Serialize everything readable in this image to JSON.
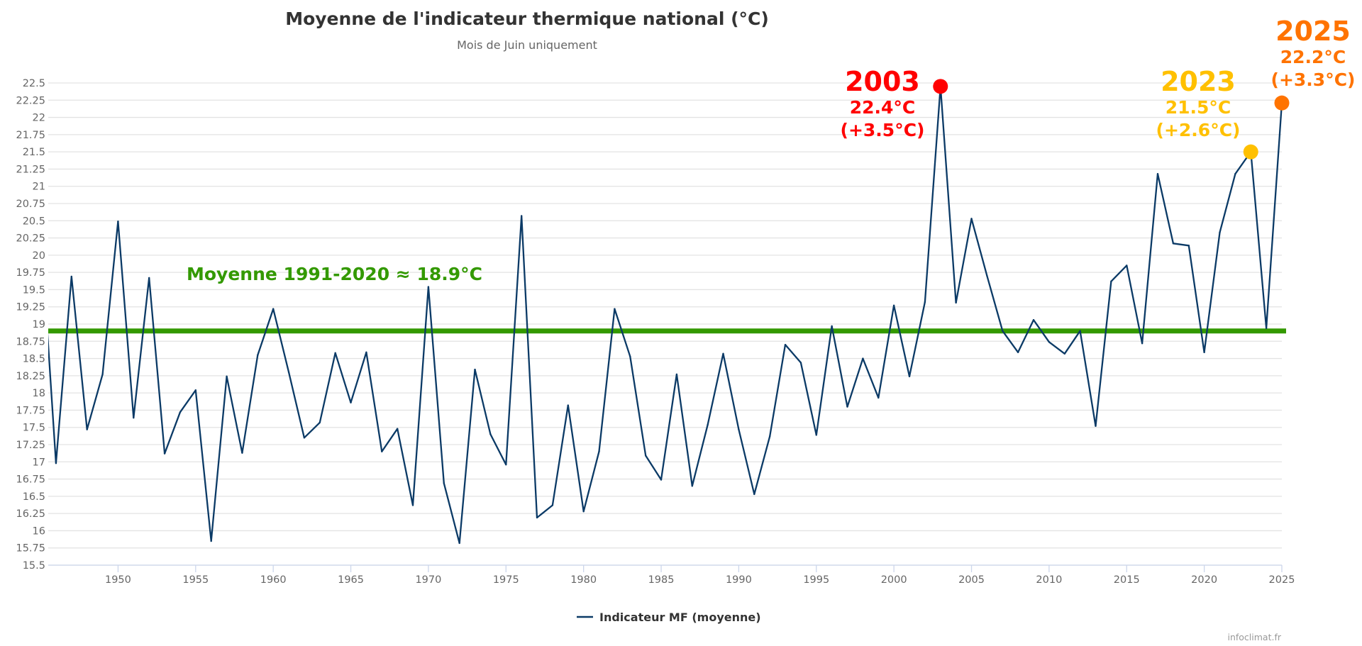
{
  "chart_data": {
    "type": "line",
    "title": "Moyenne de l'indicateur thermique national (°C)",
    "subtitle": "Mois de Juin uniquement",
    "xlabel": "",
    "ylabel": "",
    "xlim": [
      1945.5,
      2025
    ],
    "ylim": [
      15.5,
      22.5
    ],
    "y_ticks": [
      "15.5",
      "15.75",
      "16",
      "16.25",
      "16.5",
      "16.75",
      "17",
      "17.25",
      "17.5",
      "17.75",
      "18",
      "18.25",
      "18.5",
      "18.75",
      "19",
      "19.25",
      "19.5",
      "19.75",
      "20",
      "20.25",
      "20.5",
      "20.75",
      "21",
      "21.25",
      "21.5",
      "21.75",
      "22",
      "22.25",
      "22.5"
    ],
    "x_ticks": [
      "1950",
      "1955",
      "1960",
      "1965",
      "1970",
      "1975",
      "1980",
      "1985",
      "1990",
      "1995",
      "2000",
      "2005",
      "2010",
      "2015",
      "2020",
      "2025"
    ],
    "grid": true,
    "legend_position": "bottom-center",
    "series": [
      {
        "name": "Indicateur MF (moyenne)",
        "color": "#0b3a66",
        "x": [
          1945,
          1946,
          1947,
          1948,
          1949,
          1950,
          1951,
          1952,
          1953,
          1954,
          1955,
          1956,
          1957,
          1958,
          1959,
          1960,
          1961,
          1962,
          1963,
          1964,
          1965,
          1966,
          1967,
          1968,
          1969,
          1970,
          1971,
          1972,
          1973,
          1974,
          1975,
          1976,
          1977,
          1978,
          1979,
          1980,
          1981,
          1982,
          1983,
          1984,
          1985,
          1986,
          1987,
          1988,
          1989,
          1990,
          1991,
          1992,
          1993,
          1994,
          1995,
          1996,
          1997,
          1998,
          1999,
          2000,
          2001,
          2002,
          2003,
          2004,
          2005,
          2006,
          2007,
          2008,
          2009,
          2010,
          2011,
          2012,
          2013,
          2014,
          2015,
          2016,
          2017,
          2018,
          2019,
          2020,
          2021,
          2022,
          2023,
          2024,
          2025
        ],
        "values": [
          20.4,
          16.98,
          19.69,
          17.47,
          18.27,
          20.49,
          17.64,
          19.67,
          17.12,
          17.72,
          18.04,
          15.85,
          18.24,
          17.13,
          18.55,
          19.22,
          18.3,
          17.35,
          17.57,
          18.58,
          17.86,
          18.59,
          17.15,
          17.48,
          16.37,
          19.54,
          16.69,
          15.82,
          18.34,
          17.4,
          16.96,
          20.57,
          16.19,
          16.37,
          17.82,
          16.28,
          17.15,
          19.22,
          18.53,
          17.09,
          16.74,
          18.27,
          16.65,
          17.54,
          18.57,
          17.47,
          16.53,
          17.37,
          18.7,
          18.44,
          17.39,
          18.97,
          17.8,
          18.5,
          17.93,
          19.27,
          18.24,
          19.32,
          22.45,
          19.31,
          20.53,
          19.7,
          18.9,
          18.59,
          19.06,
          18.74,
          18.57,
          18.9,
          17.52,
          19.62,
          19.85,
          18.72,
          21.18,
          20.17,
          20.14,
          18.59,
          20.33,
          21.18,
          21.5,
          18.94,
          22.21
        ]
      }
    ],
    "reference_line": {
      "value": 18.9,
      "label": "Moyenne 1991-2020  ≈ 18.9°C",
      "color": "#339900"
    },
    "highlights": [
      {
        "year": 2003,
        "value": 22.45,
        "label_year": "2003",
        "label_value": "22.4°C",
        "label_anomaly": "(+3.5°C)",
        "color": "#ff0000"
      },
      {
        "year": 2023,
        "value": 21.5,
        "label_year": "2023",
        "label_value": "21.5°C",
        "label_anomaly": "(+2.6°C)",
        "color": "#ffc000"
      },
      {
        "year": 2025,
        "value": 22.21,
        "label_year": "2025",
        "label_value": "22.2°C",
        "label_anomaly": "(+3.3°C)",
        "color": "#ff7300"
      }
    ],
    "credits": "infoclimat.fr"
  }
}
